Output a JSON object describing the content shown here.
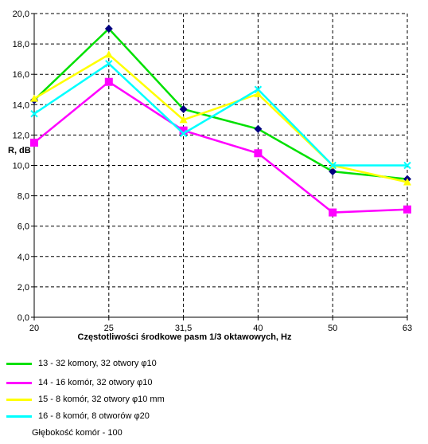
{
  "chart_data": {
    "type": "line",
    "title": "",
    "xlabel": "Częstotliwości środkowe pasm 1/3 oktawowych, Hz",
    "ylabel": "R, dB",
    "categories": [
      "20",
      "25",
      "31,5",
      "40",
      "50",
      "63"
    ],
    "ylim": [
      0,
      20
    ],
    "yticks": [
      "0,0",
      "2,0",
      "4,0",
      "6,0",
      "8,0",
      "10,0",
      "12,0",
      "14,0",
      "16,0",
      "18,0",
      "20,0"
    ],
    "grid": true,
    "legend_position": "bottom",
    "series": [
      {
        "name": "13 - 32 komory, 32 otwory φ10",
        "color": "#00e000",
        "marker": "diamond",
        "marker_color": "#000080",
        "values": [
          14.3,
          19.0,
          13.7,
          12.4,
          9.6,
          9.1
        ]
      },
      {
        "name": "14 - 16 komór, 32 otwory φ10",
        "color": "#ff00ff",
        "marker": "square",
        "marker_color": "#ff00ff",
        "values": [
          11.5,
          15.5,
          12.3,
          10.8,
          6.9,
          7.1
        ]
      },
      {
        "name": "15 - 8 komór, 32 otwory φ10 mm",
        "color": "#ffff00",
        "marker": "triangle",
        "marker_color": "#ffff00",
        "values": [
          14.4,
          17.3,
          13.0,
          14.7,
          10.0,
          8.9
        ]
      },
      {
        "name": "16 - 8 komór, 8 otworów φ20",
        "color": "#00ffff",
        "marker": "x",
        "marker_color": "#00ffff",
        "values": [
          13.4,
          16.7,
          12.1,
          15.0,
          10.0,
          10.0
        ]
      }
    ],
    "note": "Głębokość komór - 100"
  }
}
